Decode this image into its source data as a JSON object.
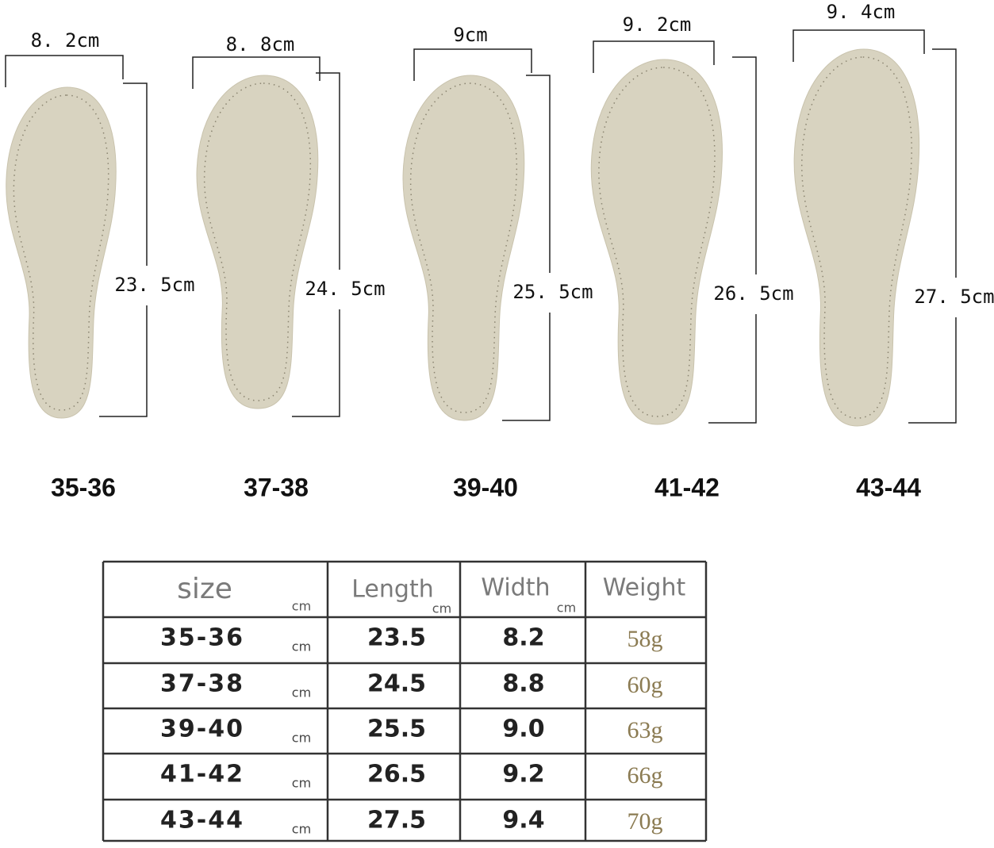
{
  "insoles": [
    {
      "width": "8. 2cm",
      "length": "23. 5cm",
      "size": "35-36"
    },
    {
      "width": "8. 8cm",
      "length": "24. 5cm",
      "size": "37-38"
    },
    {
      "width": "9cm",
      "length": "25. 5cm",
      "size": "39-40"
    },
    {
      "width": "9. 2cm",
      "length": "26. 5cm",
      "size": "41-42"
    },
    {
      "width": "9. 4cm",
      "length": "27. 5cm",
      "size": "43-44"
    }
  ],
  "table": {
    "header": [
      "size",
      "cm",
      "Length",
      "cm",
      "Width",
      "cm",
      "Weight"
    ],
    "rows": [
      [
        "35-36",
        "cm",
        "23.5",
        "8.2",
        "58g"
      ],
      [
        "37-38",
        "cm",
        "24.5",
        "8.8",
        "60g"
      ],
      [
        "39-40",
        "cm",
        "25.5",
        "9.0",
        "63g"
      ],
      [
        "41-42",
        "cm",
        "26.5",
        "9.2",
        "66g"
      ],
      [
        "43-44",
        "cm",
        "27.5",
        "9.4",
        "70g"
      ]
    ]
  }
}
